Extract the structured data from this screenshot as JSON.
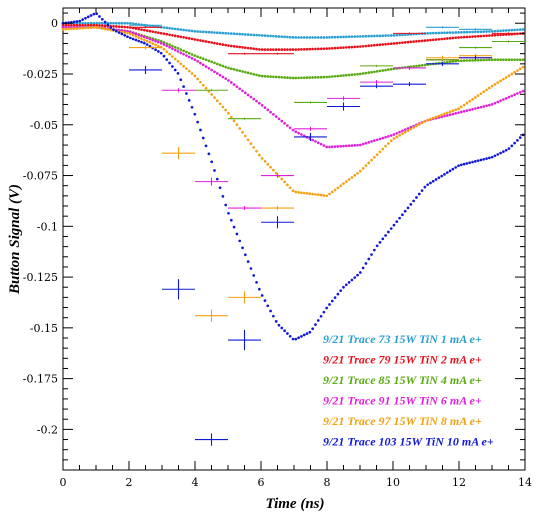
{
  "chart_data": {
    "type": "scatter",
    "xlabel": "Time (ns)",
    "ylabel": "Button Signal (V)",
    "xlim": [
      0,
      14
    ],
    "ylim": [
      -0.22,
      0.0075
    ],
    "xticks": [
      0,
      2,
      4,
      6,
      8,
      10,
      12,
      14
    ],
    "xtick_labels": [
      "0",
      "2",
      "4",
      "6",
      "8",
      "10",
      "12",
      "14"
    ],
    "yticks": [
      0,
      -0.025,
      -0.05,
      -0.075,
      -0.1,
      -0.125,
      -0.15,
      -0.175,
      -0.2
    ],
    "ytick_labels": [
      "0",
      "-0.025",
      "-0.05",
      "-0.075",
      "-0.1",
      "-0.125",
      "-0.15",
      "-0.175",
      "-0.2"
    ],
    "grid": false,
    "legend_position": "bottom-right",
    "series": [
      {
        "name": "9/21 Trace 73 15W TiN 1 mA e+",
        "color": "#2a9fd0",
        "curve_x": [
          0,
          1,
          2,
          3,
          4,
          5,
          6,
          7,
          8,
          9,
          10,
          11,
          12,
          13,
          14
        ],
        "curve_y": [
          0,
          0,
          0,
          -0.002,
          -0.004,
          -0.005,
          -0.006,
          -0.007,
          -0.007,
          -0.0065,
          -0.006,
          -0.005,
          -0.0045,
          -0.004,
          -0.003
        ],
        "markers": [
          {
            "x": 2.5,
            "y": -0.001,
            "xerr": 0.5,
            "yerr": 0.0005
          },
          {
            "x": 11.5,
            "y": -0.002,
            "xerr": 0.5,
            "yerr": 0.0005
          },
          {
            "x": 12.5,
            "y": -0.003,
            "xerr": 0.5,
            "yerr": 0.0005
          }
        ]
      },
      {
        "name": "9/21 Trace 79 15W TiN 2 mA e+",
        "color": "#e8101a",
        "curve_x": [
          0,
          1,
          2,
          3,
          4,
          5,
          6,
          7,
          8,
          9,
          10,
          11,
          12,
          13,
          14
        ],
        "curve_y": [
          -0.001,
          -0.001,
          -0.002,
          -0.005,
          -0.008,
          -0.011,
          -0.013,
          -0.013,
          -0.0125,
          -0.0115,
          -0.01,
          -0.0085,
          -0.007,
          -0.006,
          -0.005
        ],
        "markers": [
          {
            "x": 2.5,
            "y": -0.002,
            "xerr": 0.5,
            "yerr": 0.0005
          },
          {
            "x": 5.5,
            "y": -0.015,
            "xerr": 0.5,
            "yerr": 0.0005
          },
          {
            "x": 6.5,
            "y": -0.015,
            "xerr": 0.5,
            "yerr": 0.0005
          },
          {
            "x": 10.5,
            "y": -0.005,
            "xerr": 0.5,
            "yerr": 0.0005
          },
          {
            "x": 11.5,
            "y": -0.018,
            "xerr": 0.5,
            "yerr": 0.0005
          },
          {
            "x": 12.5,
            "y": -0.017,
            "xerr": 0.5,
            "yerr": 0.0005
          },
          {
            "x": 13.5,
            "y": -0.005,
            "xerr": 0.5,
            "yerr": 0.0005
          }
        ]
      },
      {
        "name": "9/21 Trace 85 15W TiN 4 mA e+",
        "color": "#5aaa12",
        "curve_x": [
          0,
          1,
          2,
          3,
          4,
          5,
          6,
          7,
          8,
          9,
          10,
          11,
          12,
          13,
          14
        ],
        "curve_y": [
          -0.002,
          -0.002,
          -0.004,
          -0.009,
          -0.016,
          -0.022,
          -0.026,
          -0.027,
          -0.0265,
          -0.025,
          -0.0225,
          -0.0205,
          -0.0185,
          -0.018,
          -0.018
        ],
        "markers": [
          {
            "x": 4.5,
            "y": -0.033,
            "xerr": 0.5,
            "yerr": 0.0005
          },
          {
            "x": 5.5,
            "y": -0.047,
            "xerr": 0.5,
            "yerr": 0.0005
          },
          {
            "x": 7.5,
            "y": -0.039,
            "xerr": 0.5,
            "yerr": 0.0005
          },
          {
            "x": 9.5,
            "y": -0.021,
            "xerr": 0.5,
            "yerr": 0.0005
          },
          {
            "x": 10.5,
            "y": -0.022,
            "xerr": 0.5,
            "yerr": 0.0005
          },
          {
            "x": 11.5,
            "y": -0.018,
            "xerr": 0.5,
            "yerr": 0.0005
          },
          {
            "x": 12.5,
            "y": -0.012,
            "xerr": 0.5,
            "yerr": 0.0005
          },
          {
            "x": 13.5,
            "y": -0.009,
            "xerr": 0.5,
            "yerr": 0.0005
          }
        ]
      },
      {
        "name": "9/21 Trace 91 15W TiN 6 mA e+",
        "color": "#e020d8",
        "curve_x": [
          0,
          1,
          2,
          3,
          4,
          5,
          6,
          7,
          8,
          9,
          10,
          11,
          12,
          13,
          14
        ],
        "curve_y": [
          -0.002,
          -0.002,
          -0.004,
          -0.01,
          -0.018,
          -0.028,
          -0.04,
          -0.053,
          -0.061,
          -0.06,
          -0.055,
          -0.048,
          -0.044,
          -0.04,
          -0.033
        ],
        "markers": [
          {
            "x": 3.5,
            "y": -0.033,
            "xerr": 0.5,
            "yerr": 0.001
          },
          {
            "x": 4.5,
            "y": -0.078,
            "xerr": 0.5,
            "yerr": 0.002
          },
          {
            "x": 5.5,
            "y": -0.091,
            "xerr": 0.5,
            "yerr": 0.001
          },
          {
            "x": 6.5,
            "y": -0.075,
            "xerr": 0.5,
            "yerr": 0.001
          },
          {
            "x": 7.5,
            "y": -0.052,
            "xerr": 0.5,
            "yerr": 0.001
          },
          {
            "x": 8.5,
            "y": -0.037,
            "xerr": 0.5,
            "yerr": 0.001
          },
          {
            "x": 9.5,
            "y": -0.029,
            "xerr": 0.5,
            "yerr": 0.001
          },
          {
            "x": 10.5,
            "y": -0.022,
            "xerr": 0.5,
            "yerr": 0.001
          }
        ]
      },
      {
        "name": "9/21 Trace 97 15W TiN 8 mA e+",
        "color": "#f5a010",
        "curve_x": [
          0,
          1,
          2,
          3,
          4,
          5,
          6,
          7,
          8,
          9,
          10,
          11,
          12,
          13,
          14
        ],
        "curve_y": [
          -0.003,
          -0.002,
          -0.005,
          -0.012,
          -0.026,
          -0.044,
          -0.066,
          -0.083,
          -0.085,
          -0.073,
          -0.057,
          -0.048,
          -0.042,
          -0.031,
          -0.021
        ],
        "markers": [
          {
            "x": 2.5,
            "y": -0.012,
            "xerr": 0.5,
            "yerr": 0.001
          },
          {
            "x": 3.5,
            "y": -0.064,
            "xerr": 0.5,
            "yerr": 0.003
          },
          {
            "x": 4.5,
            "y": -0.144,
            "xerr": 0.5,
            "yerr": 0.003
          },
          {
            "x": 5.5,
            "y": -0.135,
            "xerr": 0.5,
            "yerr": 0.003
          },
          {
            "x": 6.5,
            "y": -0.091,
            "xerr": 0.5,
            "yerr": 0.001
          },
          {
            "x": 11.5,
            "y": -0.017,
            "xerr": 0.5,
            "yerr": 0.001
          },
          {
            "x": 12.5,
            "y": -0.016,
            "xerr": 0.5,
            "yerr": 0.001
          }
        ]
      },
      {
        "name": "9/21 Trace 103 15W TiN 10 mA e+",
        "color": "#1018d8",
        "curve_x": [
          0,
          0.5,
          1,
          1.5,
          2,
          2.5,
          3,
          3.5,
          4,
          4.5,
          5,
          5.5,
          6,
          6.5,
          7,
          7.5,
          8,
          8.5,
          9,
          9.5,
          10,
          10.5,
          11,
          11.5,
          12,
          12.5,
          13,
          13.5,
          14
        ],
        "curve_y": [
          0,
          0.001,
          0.005,
          -0.003,
          -0.007,
          -0.01,
          -0.015,
          -0.025,
          -0.045,
          -0.068,
          -0.093,
          -0.113,
          -0.133,
          -0.148,
          -0.156,
          -0.152,
          -0.14,
          -0.13,
          -0.123,
          -0.11,
          -0.1,
          -0.09,
          -0.08,
          -0.075,
          -0.07,
          -0.068,
          -0.066,
          -0.062,
          -0.054
        ],
        "markers": [
          {
            "x": 2.5,
            "y": -0.023,
            "xerr": 0.5,
            "yerr": 0.002
          },
          {
            "x": 3.5,
            "y": -0.131,
            "xerr": 0.5,
            "yerr": 0.005
          },
          {
            "x": 4.5,
            "y": -0.205,
            "xerr": 0.5,
            "yerr": 0.003
          },
          {
            "x": 5.5,
            "y": -0.156,
            "xerr": 0.5,
            "yerr": 0.005
          },
          {
            "x": 6.5,
            "y": -0.098,
            "xerr": 0.5,
            "yerr": 0.003
          },
          {
            "x": 7.5,
            "y": -0.056,
            "xerr": 0.5,
            "yerr": 0.002
          },
          {
            "x": 8.5,
            "y": -0.041,
            "xerr": 0.5,
            "yerr": 0.002
          },
          {
            "x": 9.5,
            "y": -0.031,
            "xerr": 0.5,
            "yerr": 0.001
          },
          {
            "x": 10.5,
            "y": -0.03,
            "xerr": 0.5,
            "yerr": 0.001
          },
          {
            "x": 11.5,
            "y": -0.02,
            "xerr": 0.5,
            "yerr": 0.001
          },
          {
            "x": 12.5,
            "y": -0.017,
            "xerr": 0.5,
            "yerr": 0.001
          }
        ]
      }
    ]
  }
}
